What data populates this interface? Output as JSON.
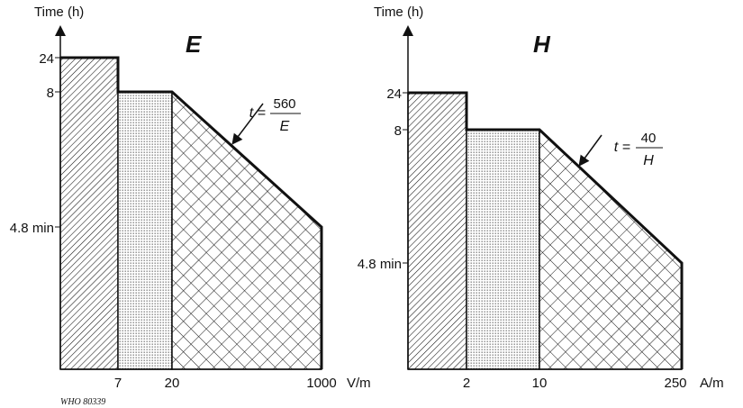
{
  "chart_data": [
    {
      "type": "area",
      "title": "E",
      "ylabel": "Time (h)",
      "xunit": "V/m",
      "x_tick_labels": [
        "7",
        "20",
        "1000"
      ],
      "y_tick_labels": [
        "24",
        "8",
        "4.8 min"
      ],
      "series": [
        {
          "x_from": 0,
          "x_to": 7,
          "time_h": 24,
          "pattern": "diagonal-hatch"
        },
        {
          "x_from": 7,
          "x_to": 20,
          "time_h": 8,
          "pattern": "dots"
        },
        {
          "x_from": 20,
          "x_to": 1000,
          "time_h_start": 8,
          "time_h_end": 0.08,
          "pattern": "crosshatch"
        }
      ],
      "annotation": {
        "lhs": "t =",
        "numerator": "560",
        "denominator": "E"
      }
    },
    {
      "type": "area",
      "title": "H",
      "ylabel": "Time (h)",
      "xunit": "A/m",
      "x_tick_labels": [
        "2",
        "10",
        "250"
      ],
      "y_tick_labels": [
        "24",
        "8",
        "4.8 min"
      ],
      "series": [
        {
          "x_from": 0,
          "x_to": 2,
          "time_h": 24,
          "pattern": "diagonal-hatch"
        },
        {
          "x_from": 2,
          "x_to": 10,
          "time_h": 8,
          "pattern": "dots"
        },
        {
          "x_from": 10,
          "x_to": 250,
          "time_h_start": 8,
          "time_h_end": 0.08,
          "pattern": "crosshatch"
        }
      ],
      "annotation": {
        "lhs": "t =",
        "numerator": "40",
        "denominator": "H"
      }
    }
  ],
  "credit": "WHO 80339"
}
